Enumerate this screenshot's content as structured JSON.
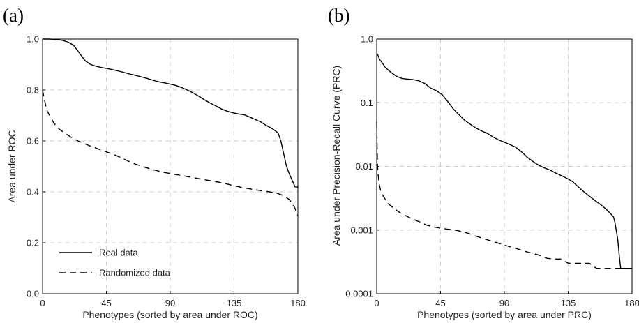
{
  "chart_data": [
    {
      "type": "line",
      "panel_label": "(a)",
      "title": "",
      "xlabel": "Phenotypes (sorted by area under ROC)",
      "ylabel": "Area under ROC",
      "xlim": [
        0,
        180
      ],
      "ylim": [
        0,
        1.0
      ],
      "y_scale": "linear",
      "grid": true,
      "legend_placement": "bottom-left",
      "x_ticks": [
        0,
        45,
        90,
        135,
        180
      ],
      "x_tick_labels": [
        "0",
        "45",
        "90",
        "135",
        "180"
      ],
      "y_ticks": [
        0,
        0.2,
        0.4,
        0.6,
        0.8,
        1.0
      ],
      "y_tick_labels": [
        "0.0",
        "0.2",
        "0.4",
        "0.6",
        "0.8",
        "1.0"
      ],
      "series": [
        {
          "name": "Real data",
          "style": "solid",
          "color": "#000000",
          "x": [
            0,
            5,
            10,
            14,
            18,
            22,
            26,
            30,
            34,
            38,
            42,
            46,
            50,
            54,
            58,
            62,
            66,
            70,
            74,
            78,
            82,
            86,
            90,
            94,
            98,
            102,
            106,
            110,
            114,
            118,
            122,
            126,
            130,
            134,
            138,
            142,
            146,
            150,
            154,
            158,
            162,
            164,
            166,
            168,
            170,
            172,
            174,
            176,
            178,
            180
          ],
          "values": [
            1.0,
            1.0,
            0.998,
            0.995,
            0.988,
            0.975,
            0.945,
            0.915,
            0.9,
            0.893,
            0.888,
            0.884,
            0.879,
            0.874,
            0.868,
            0.862,
            0.857,
            0.851,
            0.845,
            0.838,
            0.832,
            0.828,
            0.823,
            0.818,
            0.81,
            0.8,
            0.789,
            0.776,
            0.762,
            0.749,
            0.738,
            0.726,
            0.717,
            0.711,
            0.706,
            0.703,
            0.694,
            0.684,
            0.674,
            0.66,
            0.648,
            0.64,
            0.632,
            0.6,
            0.55,
            0.5,
            0.47,
            0.445,
            0.42,
            0.418
          ]
        },
        {
          "name": "Randomized data",
          "style": "dashed",
          "color": "#000000",
          "x": [
            0,
            1,
            2,
            3,
            5,
            8,
            12,
            16,
            20,
            25,
            30,
            35,
            40,
            45,
            50,
            55,
            60,
            65,
            70,
            75,
            80,
            85,
            90,
            95,
            100,
            105,
            110,
            115,
            120,
            125,
            130,
            135,
            140,
            145,
            150,
            155,
            160,
            165,
            170,
            174,
            176,
            178,
            180
          ],
          "values": [
            0.8,
            0.77,
            0.745,
            0.72,
            0.7,
            0.67,
            0.645,
            0.63,
            0.615,
            0.6,
            0.588,
            0.577,
            0.567,
            0.557,
            0.547,
            0.535,
            0.522,
            0.51,
            0.5,
            0.492,
            0.484,
            0.477,
            0.472,
            0.467,
            0.462,
            0.457,
            0.452,
            0.447,
            0.442,
            0.437,
            0.431,
            0.424,
            0.418,
            0.413,
            0.408,
            0.404,
            0.4,
            0.395,
            0.385,
            0.37,
            0.355,
            0.335,
            0.305
          ]
        }
      ]
    },
    {
      "type": "line",
      "panel_label": "(b)",
      "title": "",
      "xlabel": "Phenotypes (sorted by area under PRC)",
      "ylabel": "Area under Precision-Recall Curve (PRC)",
      "xlim": [
        0,
        180
      ],
      "ylim": [
        0.0001,
        1.0
      ],
      "y_scale": "log",
      "grid": true,
      "legend_placement": "none",
      "x_ticks": [
        0,
        45,
        90,
        135,
        180
      ],
      "x_tick_labels": [
        "0",
        "45",
        "90",
        "135",
        "180"
      ],
      "y_ticks": [
        0.0001,
        0.001,
        0.01,
        0.1,
        1.0
      ],
      "y_tick_labels": [
        "0.0001",
        "0.001",
        "0.01",
        "0.1",
        "1.0"
      ],
      "series": [
        {
          "name": "Real data",
          "style": "solid",
          "color": "#000000",
          "x": [
            0,
            1,
            2,
            4,
            6,
            10,
            14,
            18,
            22,
            26,
            30,
            34,
            38,
            42,
            46,
            50,
            54,
            58,
            62,
            66,
            70,
            74,
            78,
            82,
            86,
            90,
            94,
            98,
            102,
            106,
            110,
            114,
            118,
            122,
            126,
            130,
            134,
            138,
            142,
            146,
            150,
            154,
            158,
            162,
            165,
            167,
            168,
            170,
            171,
            172,
            174,
            176,
            178,
            180
          ],
          "values": [
            0.6,
            0.55,
            0.48,
            0.42,
            0.36,
            0.3,
            0.26,
            0.24,
            0.235,
            0.23,
            0.22,
            0.2,
            0.17,
            0.155,
            0.135,
            0.105,
            0.08,
            0.065,
            0.053,
            0.046,
            0.04,
            0.036,
            0.033,
            0.029,
            0.026,
            0.024,
            0.022,
            0.02,
            0.017,
            0.014,
            0.012,
            0.0105,
            0.0095,
            0.0088,
            0.0079,
            0.0072,
            0.0065,
            0.0058,
            0.0048,
            0.004,
            0.0034,
            0.0029,
            0.0025,
            0.0021,
            0.0018,
            0.0016,
            0.0013,
            0.0007,
            0.0004,
            0.00025,
            0.00025,
            0.00025,
            0.00025,
            0.00025
          ]
        },
        {
          "name": "Randomized data",
          "style": "dashed",
          "color": "#000000",
          "x": [
            0,
            0.3,
            0.6,
            1,
            1.5,
            2,
            3,
            5,
            8,
            12,
            16,
            20,
            25,
            30,
            35,
            40,
            45,
            50,
            55,
            60,
            65,
            70,
            75,
            80,
            85,
            90,
            95,
            100,
            105,
            110,
            115,
            120,
            125,
            130,
            135,
            140,
            145,
            150,
            155,
            160,
            165,
            170,
            175,
            180
          ],
          "values": [
            0.05,
            0.02,
            0.01,
            0.0075,
            0.006,
            0.005,
            0.004,
            0.0033,
            0.0026,
            0.0022,
            0.0019,
            0.0017,
            0.0015,
            0.00135,
            0.0012,
            0.00112,
            0.00107,
            0.00103,
            0.001,
            0.00095,
            0.00088,
            0.0008,
            0.00074,
            0.00068,
            0.00063,
            0.00058,
            0.00054,
            0.0005,
            0.00046,
            0.00043,
            0.0004,
            0.00036,
            0.00035,
            0.00035,
            0.0003,
            0.0003,
            0.0003,
            0.0003,
            0.00025,
            0.00025,
            0.00025,
            0.00025,
            0.00025,
            0.00025
          ]
        }
      ]
    }
  ]
}
